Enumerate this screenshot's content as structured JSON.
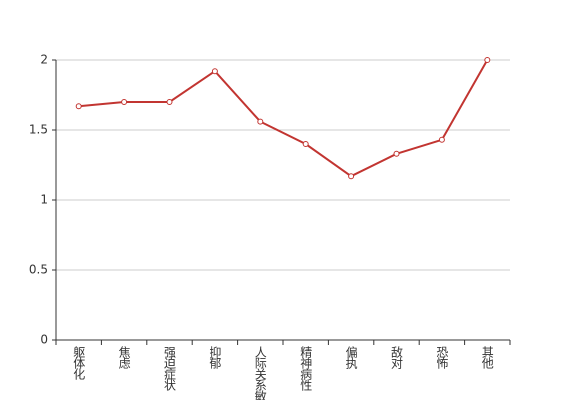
{
  "chart_data": {
    "type": "line",
    "categories": [
      "躯体化",
      "焦虑",
      "强迫症状",
      "抑郁",
      "人际关系敏感",
      "精神病性",
      "偏执",
      "敌对",
      "恐怖",
      "其他"
    ],
    "values": [
      1.67,
      1.7,
      1.7,
      1.92,
      1.56,
      1.4,
      1.17,
      1.33,
      1.43,
      2
    ],
    "color": "#c23531",
    "ylim": [
      0,
      2
    ],
    "yticks": [
      0,
      0.5,
      1,
      1.5,
      2
    ],
    "grid": true
  }
}
